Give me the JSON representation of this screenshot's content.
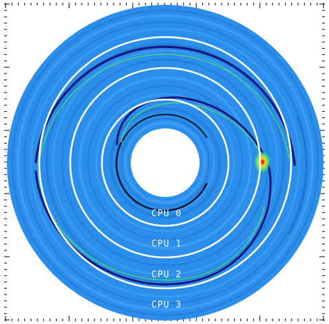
{
  "colors": {
    "background": "#ffffff",
    "disk_base": "#2a8eea",
    "disk_band_light": "#48aaf5",
    "disk_band_dark": "#1e74cf",
    "boundary_ring": "#ffffff",
    "wake_dark": "#140a6e",
    "wake_green": "#48e078",
    "wake_hot": "#ff2a10",
    "tick": "#000000"
  },
  "labels": {
    "cpu0": "CPU 0",
    "cpu1": "CPU 1",
    "cpu2": "CPU 2",
    "cpu3": "CPU 3"
  }
}
